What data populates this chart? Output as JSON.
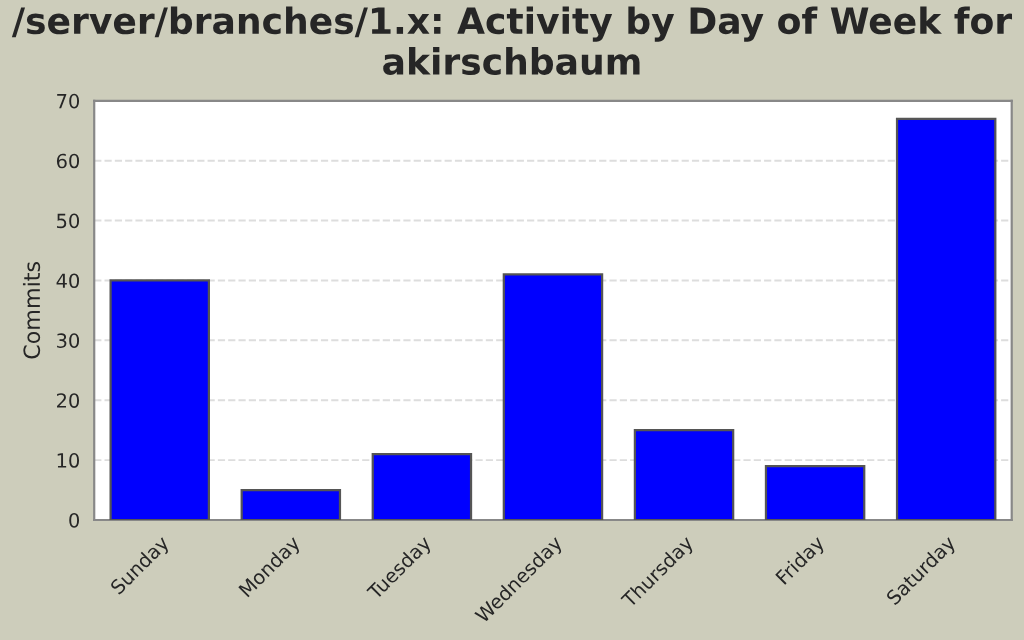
{
  "chart_data": {
    "type": "bar",
    "title": "/server/branches/1.x: Activity by Day of Week for akirschbaum",
    "ylabel": "Commits",
    "categories": [
      "Sunday",
      "Monday",
      "Tuesday",
      "Wednesday",
      "Thursday",
      "Friday",
      "Saturday"
    ],
    "values": [
      40,
      5,
      11,
      41,
      15,
      9,
      67
    ],
    "color": "#0000ff",
    "ylim": [
      0,
      70
    ],
    "yticks": [
      0,
      10,
      20,
      30,
      40,
      50,
      60,
      70
    ],
    "grid": "y",
    "legend": false
  }
}
